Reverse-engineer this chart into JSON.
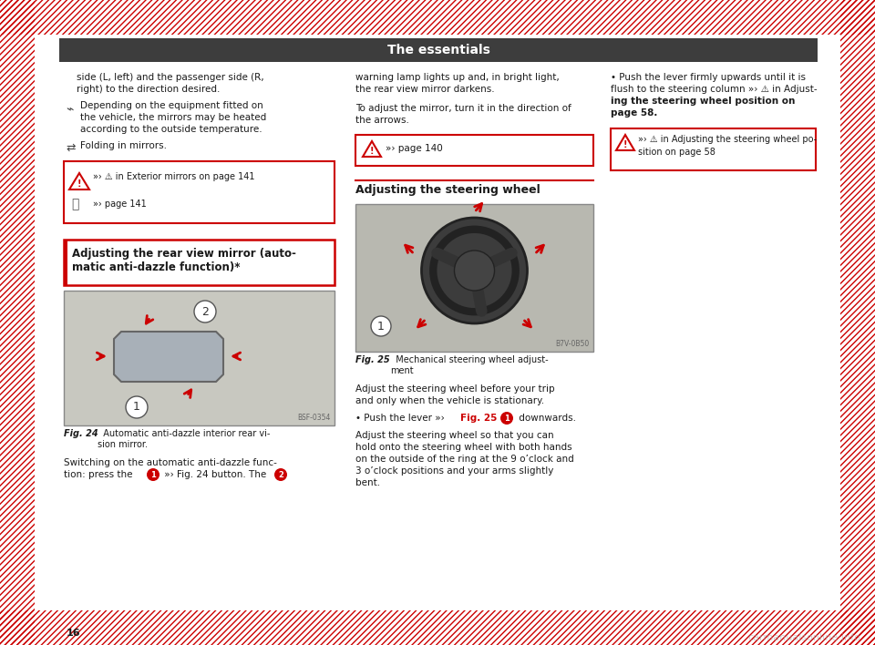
{
  "title": "The essentials",
  "title_bg": "#3d3d3d",
  "title_fg": "#ffffff",
  "bg_color": "#ffffff",
  "border_hatch_color": "#cc0000",
  "page_number": "16",
  "watermark": "carmanualsonline.info",
  "col1_lines": [
    "side (L, left) and the passenger side (R,",
    "right) to the direction desired."
  ],
  "col1_heat_lines": [
    "Depending on the equipment fitted on",
    "the vehicle, the mirrors may be heated",
    "according to the outside temperature."
  ],
  "col1_fold_line": "Folding in mirrors.",
  "warn1_line1": "in Exterior mirrors on page 141",
  "warn1_line2": "page 141",
  "sect1_title1": "Adjusting the rear view mirror (auto-",
  "sect1_title2": "matic anti-dazzle function)*",
  "fig24_caption1": "Automatic anti-dazzle interior rear vi-",
  "fig24_caption2": "sion mirror.",
  "switch_line1": "Switching on the automatic anti-dazzle func-",
  "switch_line2": "tion: press the",
  "switch_line2b": "Fig. 24 button. The",
  "col2_lines": [
    "warning lamp lights up and, in bright light,",
    "the rear view mirror darkens.",
    "",
    "To adjust the mirror, turn it in the direction of",
    "the arrows."
  ],
  "warn2_text": "page 140",
  "sect2_title": "Adjusting the steering wheel",
  "fig25_caption1": "Mechanical steering wheel adjust-",
  "fig25_caption2": "ment",
  "body_lines": [
    "Adjust the steering wheel before your trip",
    "and only when the vehicle is stationary.",
    "",
    "Push the lever",
    "Fig. 25",
    "downwards.",
    "",
    "Adjust the steering wheel so that you can",
    "hold onto the steering wheel with both hands",
    "on the outside of the ring at the 9 o’clock and",
    "3 o’clock positions and your arms slightly",
    "bent."
  ],
  "col3_lines": [
    "Push the lever firmly upwards until it is",
    "flush to the steering column",
    "in Adjust-",
    "ing the steering wheel position on",
    "page 58."
  ],
  "warn3_line1": "in Adjusting the steering wheel po-",
  "warn3_line2": "sition on page 58"
}
